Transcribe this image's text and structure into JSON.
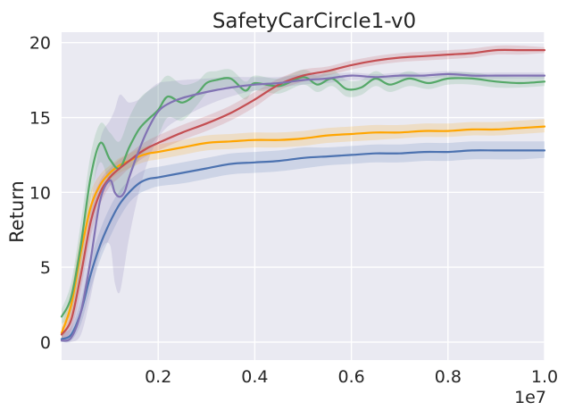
{
  "chart_data": {
    "type": "line",
    "title": "SafetyCarCircle1-v0",
    "xlabel": "",
    "ylabel": "Return",
    "x_offset_label": "1e7",
    "xlim": [
      0.0,
      1.0
    ],
    "ylim": [
      -1.2,
      20.7
    ],
    "x_ticks": [
      0.2,
      0.4,
      0.6,
      0.8,
      1.0
    ],
    "x_tick_labels": [
      "0.2",
      "0.4",
      "0.6",
      "0.8",
      "1.0"
    ],
    "y_ticks": [
      0,
      5,
      10,
      15,
      20
    ],
    "y_tick_labels": [
      "0",
      "5",
      "10",
      "15",
      "20"
    ],
    "grid": true,
    "background": "#eaeaf2",
    "series": [
      {
        "name": "series-blue",
        "color": "#4c72b0",
        "x": [
          0.0,
          0.02,
          0.04,
          0.06,
          0.08,
          0.1,
          0.12,
          0.14,
          0.16,
          0.18,
          0.2,
          0.25,
          0.3,
          0.35,
          0.4,
          0.45,
          0.5,
          0.55,
          0.6,
          0.65,
          0.7,
          0.75,
          0.8,
          0.85,
          0.9,
          0.95,
          1.0
        ],
        "mean": [
          0.2,
          0.5,
          2.0,
          4.5,
          6.5,
          8.0,
          9.2,
          10.0,
          10.6,
          10.9,
          11.0,
          11.3,
          11.6,
          11.9,
          12.0,
          12.1,
          12.3,
          12.4,
          12.5,
          12.6,
          12.6,
          12.7,
          12.7,
          12.8,
          12.8,
          12.8,
          12.8
        ],
        "lower": [
          0.0,
          0.1,
          1.2,
          3.5,
          5.5,
          7.0,
          8.3,
          9.3,
          9.9,
          10.2,
          10.4,
          10.6,
          10.9,
          11.2,
          11.3,
          11.4,
          11.6,
          11.8,
          11.9,
          12.0,
          12.0,
          12.1,
          12.1,
          12.2,
          12.2,
          12.2,
          12.3
        ],
        "upper": [
          0.6,
          1.0,
          2.8,
          5.5,
          7.5,
          9.0,
          10.1,
          10.8,
          11.3,
          11.6,
          11.7,
          12.0,
          12.3,
          12.6,
          12.7,
          12.8,
          13.0,
          13.0,
          13.1,
          13.2,
          13.2,
          13.3,
          13.3,
          13.4,
          13.4,
          13.4,
          13.4
        ]
      },
      {
        "name": "series-orange",
        "color": "#ffa500",
        "x": [
          0.0,
          0.02,
          0.04,
          0.06,
          0.08,
          0.1,
          0.12,
          0.14,
          0.16,
          0.18,
          0.2,
          0.25,
          0.3,
          0.35,
          0.4,
          0.45,
          0.5,
          0.55,
          0.6,
          0.65,
          0.7,
          0.75,
          0.8,
          0.85,
          0.9,
          0.95,
          1.0
        ],
        "mean": [
          0.6,
          2.5,
          6.0,
          9.0,
          10.5,
          11.3,
          11.8,
          12.1,
          12.4,
          12.6,
          12.7,
          13.0,
          13.3,
          13.4,
          13.5,
          13.5,
          13.6,
          13.8,
          13.9,
          14.0,
          14.0,
          14.1,
          14.1,
          14.2,
          14.2,
          14.3,
          14.4
        ],
        "lower": [
          0.2,
          1.5,
          4.8,
          8.0,
          9.8,
          10.8,
          11.3,
          11.6,
          11.9,
          12.1,
          12.2,
          12.5,
          12.8,
          12.9,
          13.0,
          13.0,
          13.1,
          13.3,
          13.4,
          13.5,
          13.6,
          13.7,
          13.7,
          13.8,
          13.8,
          13.9,
          14.0
        ],
        "upper": [
          1.0,
          3.5,
          7.2,
          10.0,
          11.2,
          11.8,
          12.3,
          12.6,
          12.9,
          13.1,
          13.2,
          13.5,
          13.8,
          13.9,
          14.0,
          14.0,
          14.1,
          14.3,
          14.4,
          14.5,
          14.5,
          14.6,
          14.6,
          14.7,
          14.7,
          14.8,
          14.9
        ]
      },
      {
        "name": "series-green",
        "color": "#55a868",
        "x": [
          0.0,
          0.02,
          0.04,
          0.06,
          0.08,
          0.1,
          0.12,
          0.14,
          0.16,
          0.18,
          0.2,
          0.22,
          0.25,
          0.28,
          0.3,
          0.32,
          0.35,
          0.38,
          0.4,
          0.45,
          0.5,
          0.53,
          0.56,
          0.59,
          0.62,
          0.65,
          0.68,
          0.72,
          0.76,
          0.8,
          0.85,
          0.9,
          0.95,
          1.0
        ],
        "mean": [
          1.7,
          3.0,
          6.5,
          11.0,
          13.3,
          12.2,
          11.6,
          13.0,
          14.2,
          14.9,
          15.5,
          16.4,
          16.0,
          16.6,
          17.3,
          17.5,
          17.6,
          16.8,
          17.3,
          17.1,
          17.7,
          17.2,
          17.6,
          16.9,
          17.0,
          17.6,
          17.2,
          17.6,
          17.3,
          17.6,
          17.6,
          17.4,
          17.3,
          17.4
        ],
        "lower": [
          1.2,
          2.0,
          5.0,
          9.5,
          12.0,
          10.5,
          9.8,
          11.0,
          12.2,
          13.0,
          13.8,
          15.0,
          14.8,
          15.8,
          16.6,
          16.9,
          17.0,
          16.2,
          16.8,
          16.6,
          17.2,
          16.7,
          17.1,
          16.4,
          16.5,
          17.1,
          16.7,
          17.1,
          16.9,
          17.2,
          17.2,
          17.0,
          17.0,
          17.1
        ],
        "upper": [
          2.2,
          4.0,
          8.0,
          12.5,
          14.6,
          14.0,
          13.4,
          15.0,
          16.2,
          16.8,
          17.2,
          17.8,
          17.2,
          17.4,
          18.0,
          18.1,
          18.2,
          17.4,
          17.8,
          17.6,
          18.2,
          17.8,
          18.2,
          17.5,
          17.5,
          18.1,
          17.7,
          18.1,
          17.7,
          18.0,
          18.0,
          17.8,
          17.7,
          17.8
        ]
      },
      {
        "name": "series-red",
        "color": "#c44e52",
        "x": [
          0.0,
          0.02,
          0.04,
          0.06,
          0.08,
          0.1,
          0.12,
          0.14,
          0.16,
          0.18,
          0.2,
          0.25,
          0.3,
          0.35,
          0.4,
          0.45,
          0.5,
          0.55,
          0.6,
          0.65,
          0.7,
          0.75,
          0.8,
          0.85,
          0.9,
          0.95,
          1.0
        ],
        "mean": [
          0.5,
          1.5,
          4.5,
          8.0,
          10.0,
          11.0,
          11.6,
          12.1,
          12.6,
          13.0,
          13.3,
          14.0,
          14.6,
          15.3,
          16.2,
          17.2,
          17.8,
          18.1,
          18.5,
          18.8,
          19.0,
          19.1,
          19.2,
          19.3,
          19.5,
          19.5,
          19.5
        ],
        "lower": [
          0.1,
          0.8,
          3.5,
          7.0,
          9.2,
          10.4,
          11.0,
          11.6,
          12.1,
          12.5,
          12.8,
          13.5,
          14.1,
          14.8,
          15.7,
          16.8,
          17.4,
          17.8,
          18.2,
          18.5,
          18.7,
          18.8,
          18.9,
          19.0,
          19.2,
          19.2,
          19.3
        ],
        "upper": [
          0.9,
          2.2,
          5.5,
          9.0,
          10.8,
          11.6,
          12.2,
          12.6,
          13.1,
          13.5,
          13.8,
          14.5,
          15.1,
          15.8,
          16.7,
          17.6,
          18.2,
          18.4,
          18.8,
          19.1,
          19.3,
          19.4,
          19.5,
          19.6,
          19.8,
          19.8,
          19.7
        ]
      },
      {
        "name": "series-purple",
        "color": "#8172b3",
        "x": [
          0.0,
          0.02,
          0.04,
          0.06,
          0.08,
          0.1,
          0.11,
          0.12,
          0.13,
          0.14,
          0.16,
          0.18,
          0.2,
          0.22,
          0.25,
          0.3,
          0.35,
          0.4,
          0.45,
          0.5,
          0.55,
          0.6,
          0.65,
          0.7,
          0.75,
          0.8,
          0.85,
          0.9,
          0.95,
          1.0
        ],
        "mean": [
          0.1,
          0.3,
          2.0,
          5.5,
          9.5,
          10.8,
          10.0,
          9.7,
          10.0,
          11.0,
          12.8,
          14.3,
          15.4,
          15.9,
          16.3,
          16.7,
          17.0,
          17.2,
          17.3,
          17.5,
          17.6,
          17.8,
          17.7,
          17.8,
          17.8,
          17.9,
          17.8,
          17.8,
          17.8,
          17.8
        ],
        "lower": [
          0.0,
          0.0,
          0.5,
          3.0,
          6.0,
          6.5,
          4.0,
          3.3,
          5.0,
          7.0,
          10.0,
          12.2,
          13.6,
          14.4,
          15.0,
          15.8,
          16.4,
          16.8,
          17.0,
          17.2,
          17.3,
          17.5,
          17.5,
          17.6,
          17.6,
          17.7,
          17.6,
          17.6,
          17.6,
          17.6
        ],
        "upper": [
          0.5,
          1.5,
          4.0,
          9.0,
          13.5,
          14.8,
          15.5,
          16.5,
          16.3,
          16.0,
          16.2,
          16.8,
          17.3,
          17.4,
          17.5,
          17.6,
          17.7,
          17.7,
          17.7,
          17.9,
          17.9,
          18.0,
          17.9,
          18.0,
          18.0,
          18.1,
          18.0,
          18.0,
          18.0,
          18.0
        ]
      }
    ]
  }
}
